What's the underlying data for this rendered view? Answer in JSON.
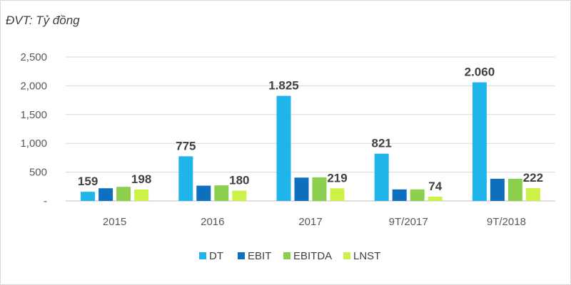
{
  "unit_label": "ĐVT:  Tỷ đồng",
  "chart_data": {
    "type": "bar",
    "title": "",
    "xlabel": "",
    "ylabel": "",
    "categories": [
      "2015",
      "2016",
      "2017",
      "9T/2017",
      "9T/2018"
    ],
    "ylim": [
      0,
      2500
    ],
    "yticks": [
      0,
      500,
      1000,
      1500,
      2000,
      2500
    ],
    "ytick_labels": [
      "-",
      "500",
      "1,000",
      "1,500",
      "2,000",
      "2,500"
    ],
    "grid": true,
    "legend_position": "bottom",
    "series": [
      {
        "name": "DT",
        "color": "#1fb4ea",
        "values": [
          159,
          775,
          1825,
          821,
          2060
        ],
        "labels": [
          "159",
          "775",
          "1.825",
          "821",
          "2.060"
        ]
      },
      {
        "name": "EBIT",
        "color": "#0f6fbf",
        "values": [
          220,
          265,
          405,
          200,
          385
        ],
        "labels": [
          "",
          "",
          "",
          "",
          ""
        ]
      },
      {
        "name": "EBITDA",
        "color": "#8ccf4f",
        "values": [
          245,
          270,
          410,
          200,
          385
        ],
        "labels": [
          "",
          "",
          "",
          "",
          ""
        ]
      },
      {
        "name": "LNST",
        "color": "#ccf24a",
        "values": [
          198,
          180,
          219,
          74,
          222
        ],
        "labels": [
          "198",
          "180",
          "219",
          "74",
          "222"
        ]
      }
    ]
  }
}
